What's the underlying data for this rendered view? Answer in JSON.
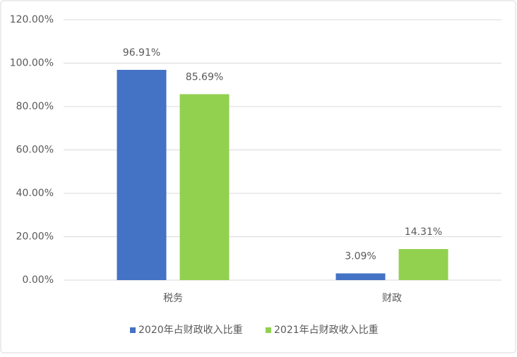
{
  "chart_data": {
    "type": "bar",
    "categories": [
      "税务",
      "财政"
    ],
    "series": [
      {
        "name": "2020年占财政收入比重",
        "color": "#4472c4",
        "values": [
          96.91,
          3.09
        ],
        "value_labels": [
          "96.91%",
          "3.09%"
        ]
      },
      {
        "name": "2021年占财政收入比重",
        "color": "#92d050",
        "values": [
          85.69,
          14.31
        ],
        "value_labels": [
          "85.69%",
          "14.31%"
        ]
      }
    ],
    "ylim": [
      0,
      120
    ],
    "yticks": [
      {
        "value": 0,
        "label": "0.00%"
      },
      {
        "value": 20,
        "label": "20.00%"
      },
      {
        "value": 40,
        "label": "40.00%"
      },
      {
        "value": 60,
        "label": "60.00%"
      },
      {
        "value": 80,
        "label": "80.00%"
      },
      {
        "value": 100,
        "label": "100.00%"
      },
      {
        "value": 120,
        "label": "120.00%"
      }
    ],
    "grid": true,
    "legend": "bottom"
  }
}
